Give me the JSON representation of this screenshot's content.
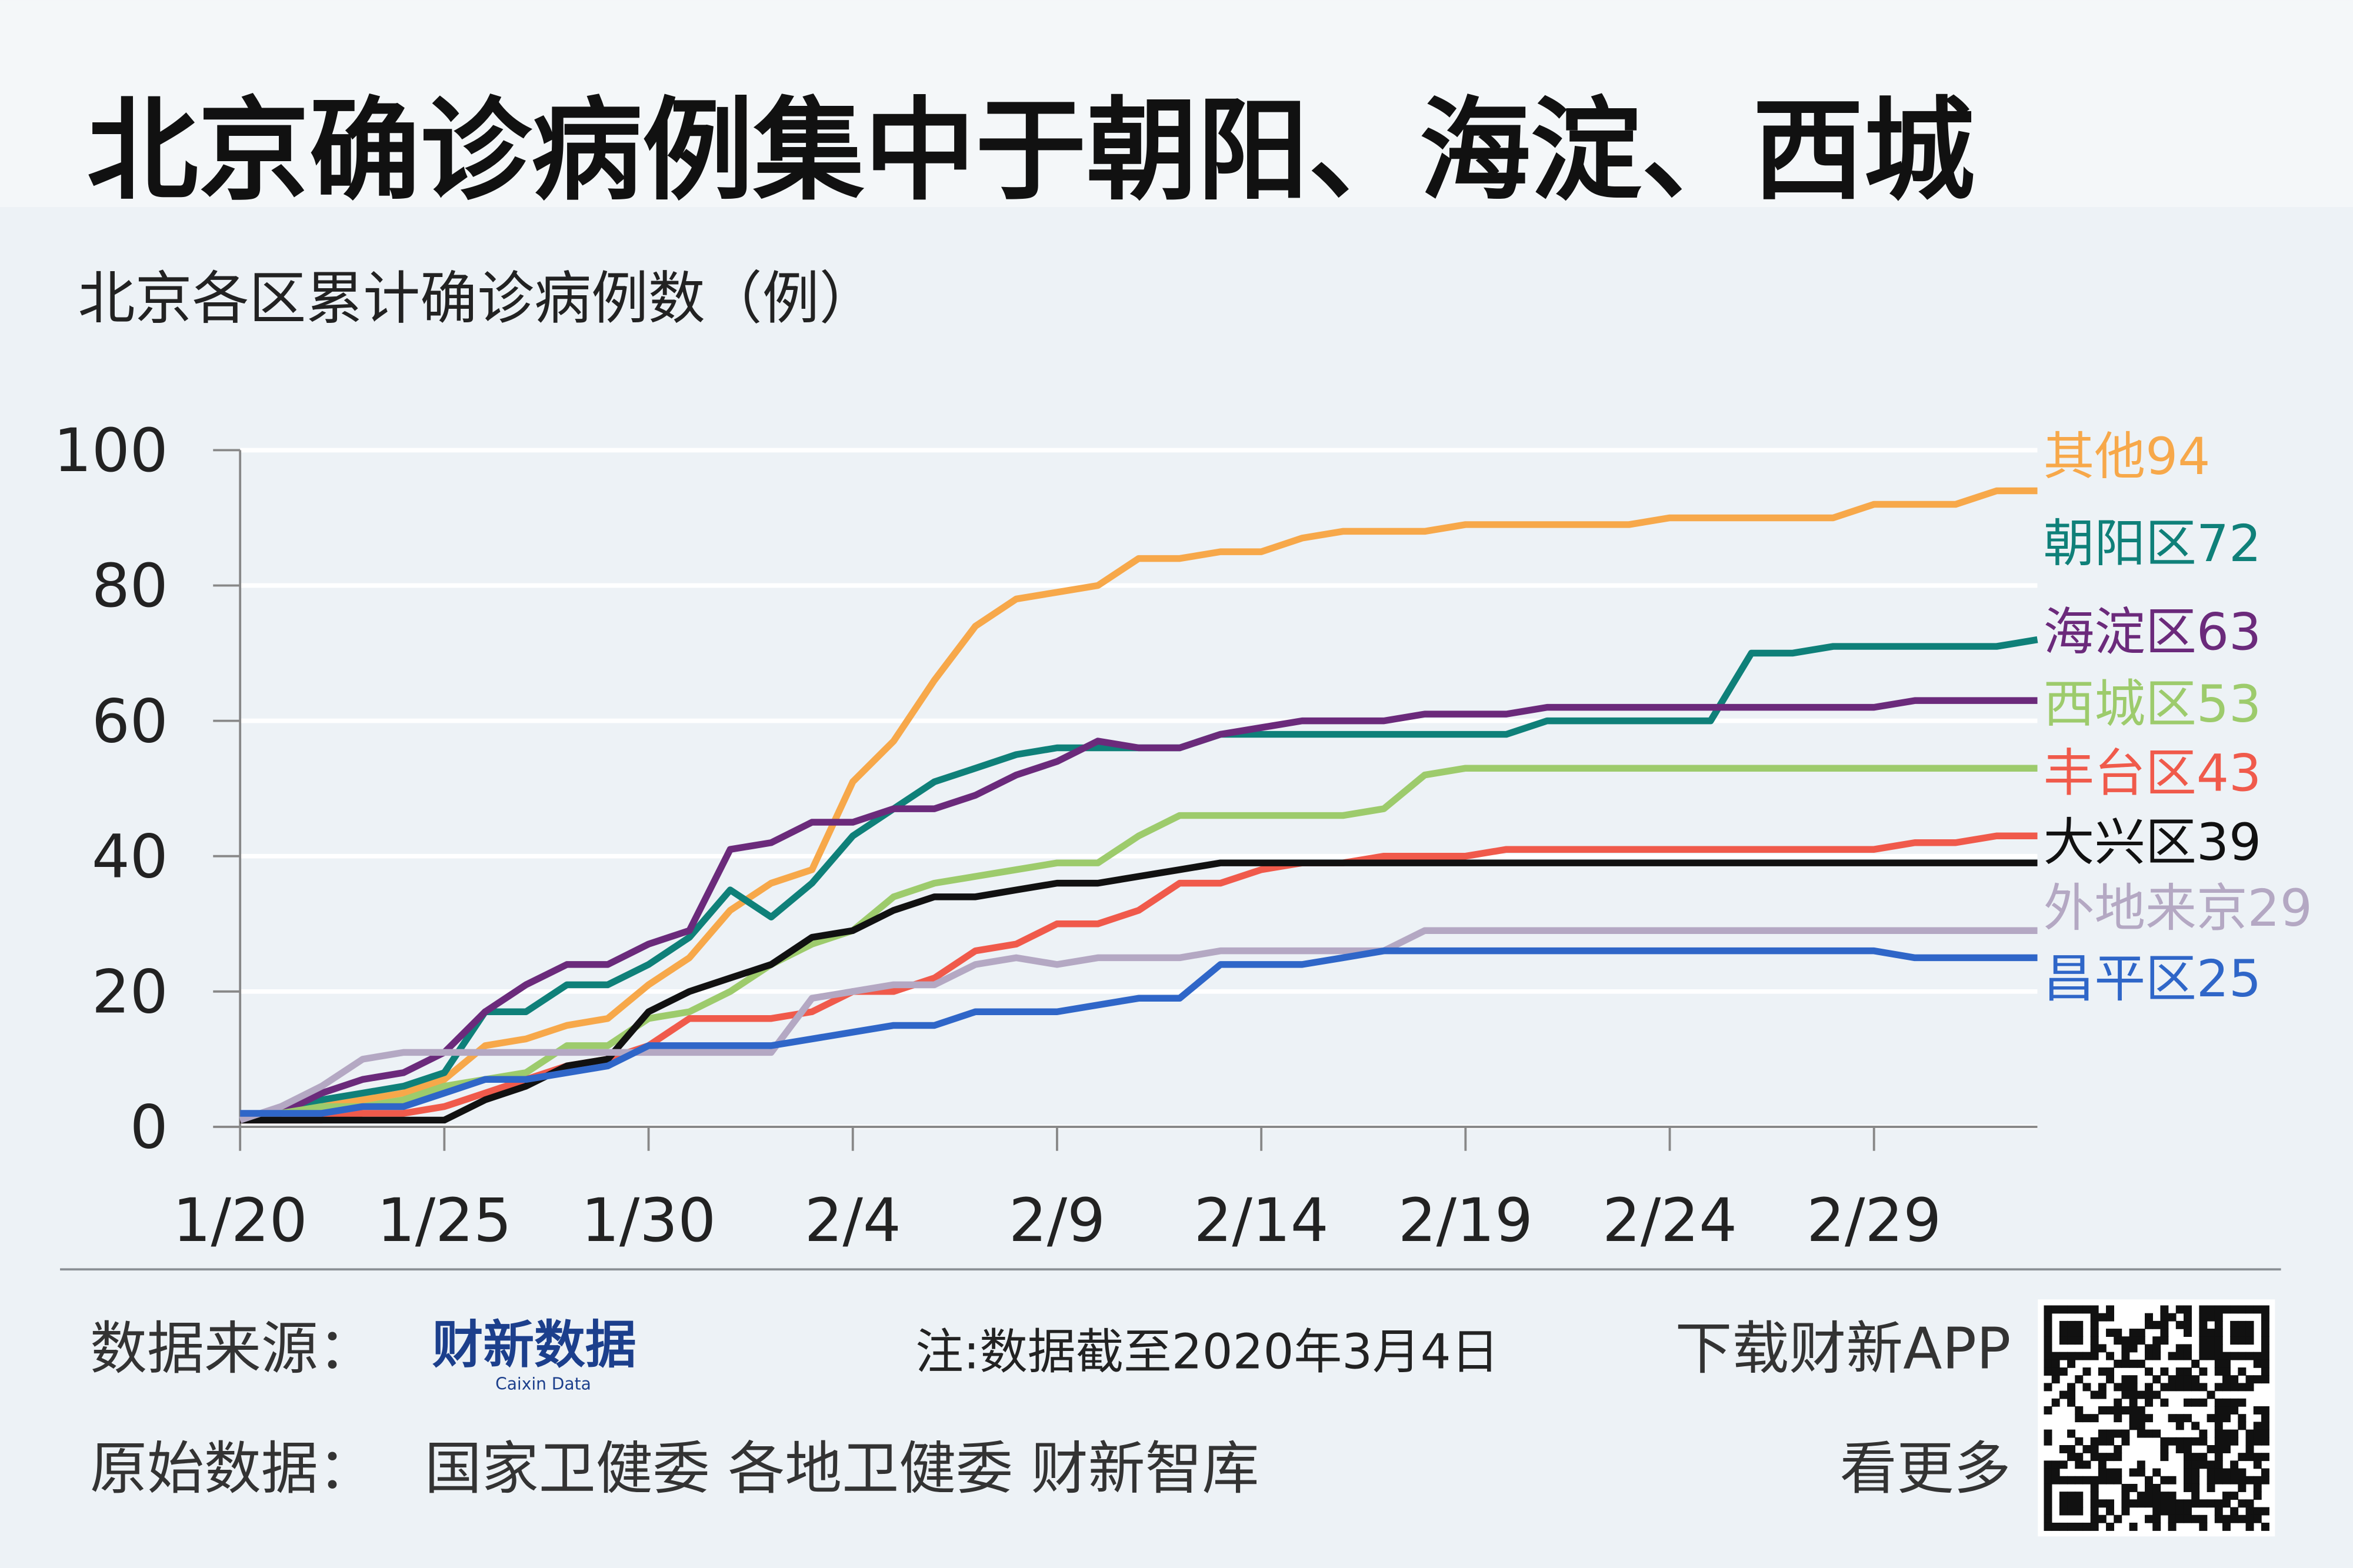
{
  "chart_data": {
    "type": "line",
    "title": "北京确诊病例集中于朝阳、海淀、西城",
    "subtitle": "北京各区累计确诊病例数（例）",
    "categories": [
      "1/20",
      null,
      null,
      null,
      null,
      "1/25",
      null,
      null,
      null,
      null,
      "1/30",
      null,
      null,
      null,
      null,
      "2/4",
      null,
      null,
      null,
      null,
      "2/9",
      null,
      null,
      null,
      null,
      "2/14",
      null,
      null,
      null,
      null,
      "2/19",
      null,
      null,
      null,
      null,
      "2/24",
      null,
      null,
      null,
      null,
      "2/29",
      null,
      null,
      null,
      null
    ],
    "ylim": [
      0,
      100
    ],
    "yticks": [
      0,
      20,
      40,
      60,
      80,
      100
    ],
    "grid": true,
    "series": [
      {
        "name": "其他",
        "color": "#f7a84a",
        "values": [
          1,
          2,
          3,
          4,
          5,
          7,
          12,
          13,
          15,
          16,
          21,
          25,
          32,
          36,
          38,
          51,
          57,
          66,
          74,
          78,
          79,
          80,
          84,
          84,
          85,
          85,
          87,
          88,
          88,
          88,
          89,
          89,
          89,
          89,
          89,
          90,
          90,
          90,
          90,
          90,
          92,
          92,
          92,
          94,
          94
        ]
      },
      {
        "name": "朝阳区",
        "color": "#0f8079",
        "values": [
          1,
          2,
          4,
          5,
          6,
          8,
          17,
          17,
          21,
          21,
          24,
          28,
          35,
          31,
          36,
          43,
          47,
          51,
          53,
          55,
          56,
          56,
          56,
          56,
          58,
          58,
          58,
          58,
          58,
          58,
          58,
          58,
          60,
          60,
          60,
          60,
          60,
          70,
          70,
          71,
          71,
          71,
          71,
          71,
          72
        ]
      },
      {
        "name": "海淀区",
        "color": "#6b2a7b",
        "values": [
          1,
          2,
          5,
          7,
          8,
          11,
          17,
          21,
          24,
          24,
          27,
          29,
          41,
          42,
          45,
          45,
          47,
          47,
          49,
          52,
          54,
          57,
          56,
          56,
          58,
          59,
          60,
          60,
          60,
          61,
          61,
          61,
          62,
          62,
          62,
          62,
          62,
          62,
          62,
          62,
          62,
          63,
          63,
          63,
          63
        ]
      },
      {
        "name": "西城区",
        "color": "#9dcb6c",
        "values": [
          1,
          2,
          3,
          3,
          4,
          6,
          7,
          8,
          12,
          12,
          16,
          17,
          20,
          24,
          27,
          29,
          34,
          36,
          37,
          38,
          39,
          39,
          43,
          46,
          46,
          46,
          46,
          46,
          47,
          52,
          53,
          53,
          53,
          53,
          53,
          53,
          53,
          53,
          53,
          53,
          53,
          53,
          53,
          53,
          53
        ]
      },
      {
        "name": "丰台区",
        "color": "#f05a4b",
        "values": [
          1,
          1,
          1,
          2,
          2,
          3,
          5,
          7,
          9,
          10,
          12,
          16,
          16,
          16,
          17,
          20,
          20,
          22,
          26,
          27,
          30,
          30,
          32,
          36,
          36,
          38,
          39,
          39,
          40,
          40,
          40,
          41,
          41,
          41,
          41,
          41,
          41,
          41,
          41,
          41,
          41,
          42,
          42,
          43,
          43
        ]
      },
      {
        "name": "大兴区",
        "color": "#111111",
        "values": [
          1,
          1,
          1,
          1,
          1,
          1,
          4,
          6,
          9,
          10,
          17,
          20,
          22,
          24,
          28,
          29,
          32,
          34,
          34,
          35,
          36,
          36,
          37,
          38,
          39,
          39,
          39,
          39,
          39,
          39,
          39,
          39,
          39,
          39,
          39,
          39,
          39,
          39,
          39,
          39,
          39,
          39,
          39,
          39,
          39
        ]
      },
      {
        "name": "外地来京",
        "color": "#b4a8c3",
        "values": [
          1,
          3,
          6,
          10,
          11,
          11,
          11,
          11,
          11,
          11,
          11,
          11,
          11,
          11,
          19,
          20,
          21,
          21,
          24,
          25,
          24,
          25,
          25,
          25,
          26,
          26,
          26,
          26,
          26,
          29,
          29,
          29,
          29,
          29,
          29,
          29,
          29,
          29,
          29,
          29,
          29,
          29,
          29,
          29,
          29
        ]
      },
      {
        "name": "昌平区",
        "color": "#2f66c8",
        "values": [
          2,
          2,
          2,
          3,
          3,
          5,
          7,
          7,
          8,
          9,
          12,
          12,
          12,
          12,
          13,
          14,
          15,
          15,
          17,
          17,
          17,
          18,
          19,
          19,
          24,
          24,
          24,
          25,
          26,
          26,
          26,
          26,
          26,
          26,
          26,
          26,
          26,
          26,
          26,
          26,
          26,
          25,
          25,
          25,
          25
        ]
      }
    ]
  },
  "footer": {
    "source_label": "数据来源：",
    "source_logo": "财新数据",
    "source_logo_en": "Caixin Data",
    "note": "注:数据截至2020年3月4日",
    "download": "下载财新APP",
    "raw_label": "原始数据：",
    "raw_sources": "国家卫健委 各地卫健委 财新智库",
    "more": "看更多"
  }
}
